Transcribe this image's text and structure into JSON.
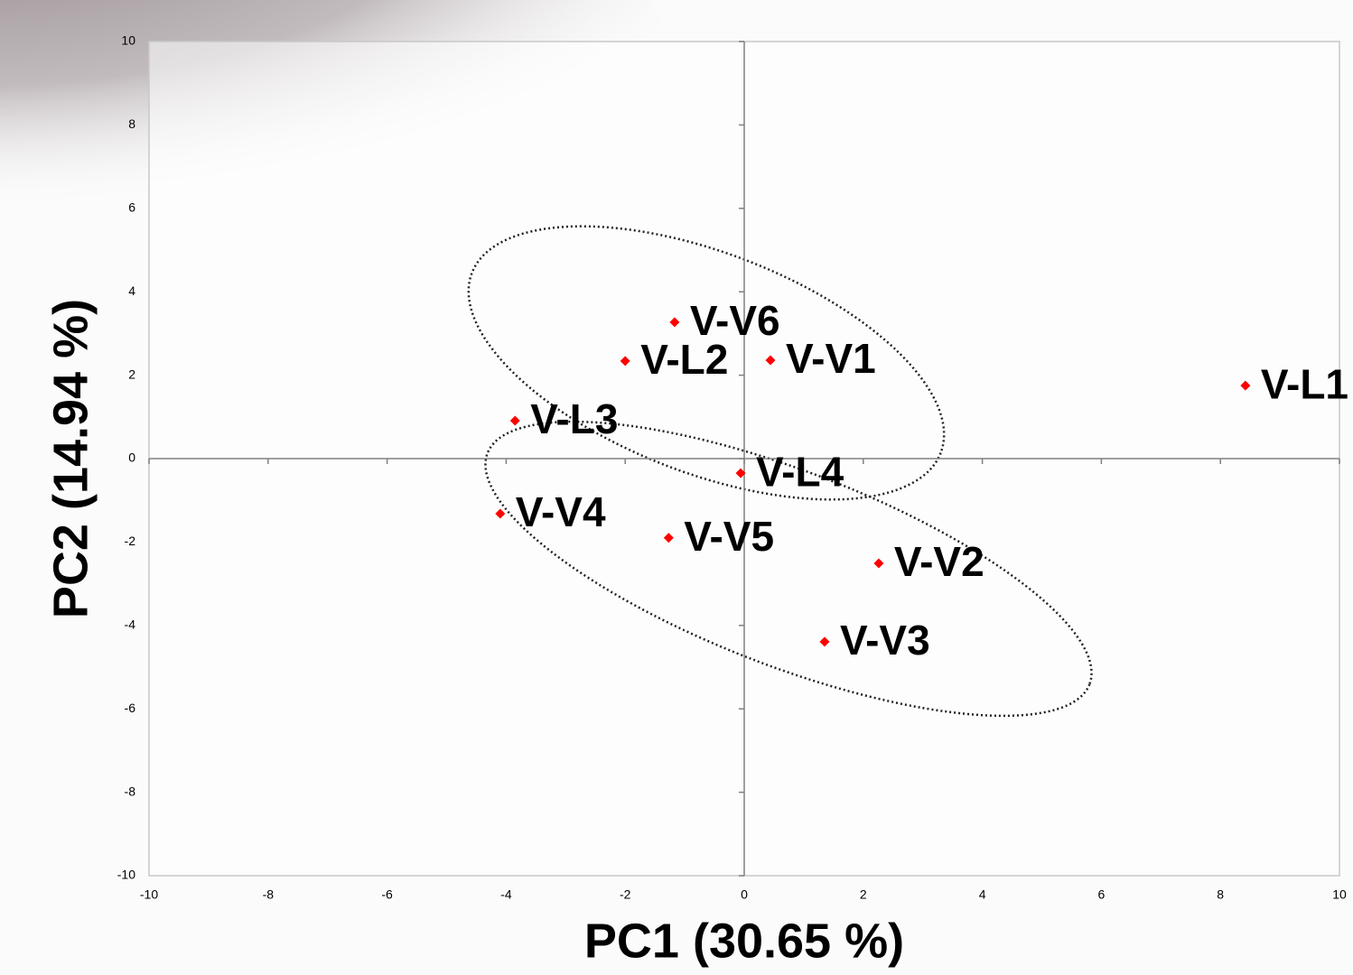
{
  "chart_data": {
    "type": "scatter",
    "x_label": "PC1 (30.65 %)",
    "y_label": "PC2  (14.94 %)",
    "xlim": [
      -10,
      10
    ],
    "ylim": [
      -10,
      10
    ],
    "xticks": [
      -10,
      -8,
      -6,
      -4,
      -2,
      0,
      2,
      4,
      6,
      8,
      10
    ],
    "yticks": [
      -10,
      -8,
      -6,
      -4,
      -2,
      0,
      2,
      4,
      6,
      8,
      10
    ],
    "color": "#ff0000",
    "point_labels": [
      "V-V6",
      "V-L2",
      "V-V1",
      "V-L1",
      "V-L3",
      "V-L4",
      "V-V4",
      "V-V5",
      "V-V2",
      "V-V3"
    ],
    "x": [
      -1.17,
      -2.0,
      0.44,
      8.42,
      -3.85,
      -0.06,
      -4.1,
      -1.27,
      2.26,
      1.35
    ],
    "values": [
      3.27,
      2.34,
      2.36,
      1.75,
      0.91,
      -0.35,
      -1.32,
      -1.9,
      -2.51,
      -4.39
    ]
  }
}
